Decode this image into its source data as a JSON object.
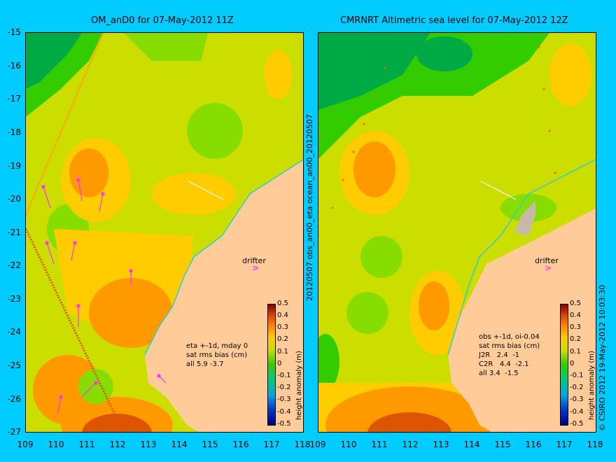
{
  "left_panel": {
    "title": "OM_anD0 for 07-May-2012 11Z",
    "info": "eta +-1d, mday 0\nsat rms bias (cm)\nall 5.9 -3.7",
    "drifter_label": "drifter"
  },
  "right_panel": {
    "title": "CMRNRT Altimetric sea level  for 07-May-2012 12Z",
    "info": "obs +-1d, oi-0.04\nsat rms bias (cm)\nJ2R   2.4  -1\nC2R   4.4  -2.1\nall 3.4  -1.5",
    "drifter_label": "drifter"
  },
  "latitude_ticks": [
    "-15",
    "-16",
    "-17",
    "-18",
    "-19",
    "-20",
    "-21",
    "-22",
    "-23",
    "-24",
    "-25",
    "-26",
    "-27"
  ],
  "longitude_ticks": [
    "109",
    "110",
    "111",
    "112",
    "113",
    "114",
    "115",
    "116",
    "117",
    "118"
  ],
  "colorbar": {
    "title": "height anomaly (m)",
    "labels": [
      "0.5",
      "0.4",
      "0.3",
      "0.2",
      "0.1",
      "0",
      "-0.1",
      "-0.2",
      "-0.3",
      "-0.4",
      "-0.5"
    ]
  },
  "middle_vertical_text": "20120507 obs_an00_eta          ocean_an00_20120507",
  "credit": "© CSIRO 2012   19-May-2012 10:03:30",
  "colors": {
    "background": "#00ccff",
    "land": "#ffcc99",
    "vector": "#ff33ff",
    "coast_line": "#33cccc"
  }
}
